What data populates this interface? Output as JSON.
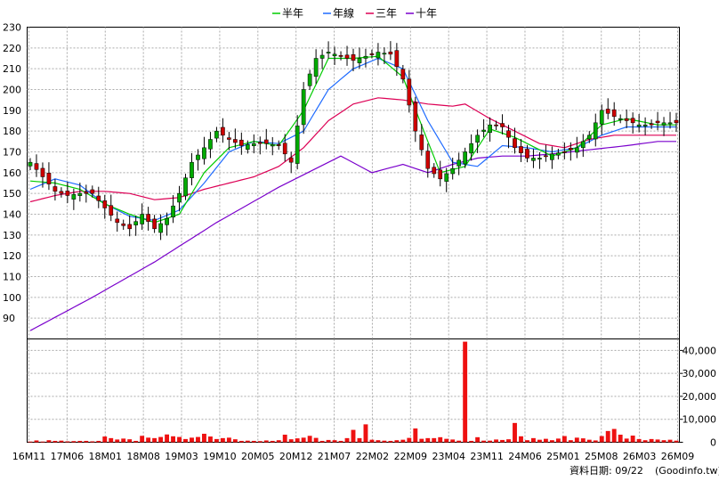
{
  "chart_data": [
    {
      "type": "candlestick",
      "legend": {
        "placement": "top-center",
        "entries": [
          {
            "name": "半年",
            "color": "#00cc00"
          },
          {
            "name": "年線",
            "color": "#1e6bff"
          },
          {
            "name": "三年",
            "color": "#dd0055"
          },
          {
            "name": "十年",
            "color": "#7a00cc"
          }
        ]
      },
      "ylim": [
        80,
        230
      ],
      "y_ticks": [
        90,
        100,
        110,
        120,
        130,
        140,
        150,
        160,
        170,
        180,
        190,
        200,
        210,
        220,
        230
      ],
      "grid": true,
      "up_color": "#00aa00",
      "down_color": "#cc0000",
      "x_ticks": [
        "16M11",
        "17M06",
        "18M01",
        "18M08",
        "19M03",
        "19M10",
        "20M05",
        "20M12",
        "21M07",
        "22M02",
        "22M09",
        "23M04",
        "23M11",
        "24M06",
        "25M01",
        "25M08",
        "26M03",
        "26M09"
      ],
      "price_anchors": [
        [
          0,
          165
        ],
        [
          2,
          158
        ],
        [
          4,
          151
        ],
        [
          6,
          149
        ],
        [
          8,
          150
        ],
        [
          10,
          150
        ],
        [
          12,
          143
        ],
        [
          14,
          136
        ],
        [
          16,
          133
        ],
        [
          18,
          140
        ],
        [
          20,
          133
        ],
        [
          22,
          138
        ],
        [
          24,
          150
        ],
        [
          26,
          165
        ],
        [
          28,
          172
        ],
        [
          30,
          180
        ],
        [
          32,
          176
        ],
        [
          34,
          173
        ],
        [
          36,
          174
        ],
        [
          38,
          174
        ],
        [
          40,
          173
        ],
        [
          42,
          165
        ],
        [
          44,
          200
        ],
        [
          46,
          215
        ],
        [
          48,
          218
        ],
        [
          50,
          216
        ],
        [
          52,
          214
        ],
        [
          54,
          216
        ],
        [
          56,
          218
        ],
        [
          58,
          217
        ],
        [
          60,
          205
        ],
        [
          62,
          180
        ],
        [
          64,
          162
        ],
        [
          66,
          157
        ],
        [
          68,
          162
        ],
        [
          70,
          170
        ],
        [
          72,
          178
        ],
        [
          74,
          183
        ],
        [
          76,
          182
        ],
        [
          78,
          172
        ],
        [
          80,
          167
        ],
        [
          82,
          167
        ],
        [
          84,
          169
        ],
        [
          86,
          170
        ],
        [
          88,
          172
        ],
        [
          90,
          178
        ],
        [
          92,
          190
        ],
        [
          94,
          187
        ],
        [
          96,
          185
        ],
        [
          98,
          183
        ],
        [
          100,
          183
        ],
        [
          101,
          184
        ]
      ],
      "ma_half_year": [
        [
          0,
          156
        ],
        [
          4,
          155
        ],
        [
          8,
          152
        ],
        [
          12,
          145
        ],
        [
          16,
          140
        ],
        [
          20,
          136
        ],
        [
          24,
          140
        ],
        [
          28,
          160
        ],
        [
          32,
          172
        ],
        [
          36,
          175
        ],
        [
          40,
          173
        ],
        [
          44,
          190
        ],
        [
          48,
          215
        ],
        [
          52,
          215
        ],
        [
          56,
          216
        ],
        [
          60,
          206
        ],
        [
          64,
          175
        ],
        [
          66,
          160
        ],
        [
          70,
          163
        ],
        [
          74,
          181
        ],
        [
          78,
          177
        ],
        [
          84,
          168
        ],
        [
          88,
          172
        ],
        [
          92,
          183
        ],
        [
          96,
          186
        ],
        [
          101,
          183
        ]
      ],
      "ma_year": [
        [
          0,
          152
        ],
        [
          4,
          157
        ],
        [
          8,
          154
        ],
        [
          12,
          145
        ],
        [
          16,
          139
        ],
        [
          20,
          137
        ],
        [
          24,
          142
        ],
        [
          28,
          155
        ],
        [
          32,
          170
        ],
        [
          36,
          175
        ],
        [
          40,
          174
        ],
        [
          44,
          180
        ],
        [
          48,
          200
        ],
        [
          52,
          210
        ],
        [
          56,
          215
        ],
        [
          60,
          210
        ],
        [
          64,
          185
        ],
        [
          68,
          165
        ],
        [
          72,
          163
        ],
        [
          76,
          173
        ],
        [
          80,
          172
        ],
        [
          84,
          170
        ],
        [
          88,
          172
        ],
        [
          92,
          178
        ],
        [
          96,
          182
        ],
        [
          101,
          182
        ]
      ],
      "ma_three_year": [
        [
          0,
          146
        ],
        [
          4,
          149
        ],
        [
          8,
          151
        ],
        [
          12,
          151
        ],
        [
          16,
          150
        ],
        [
          20,
          147
        ],
        [
          24,
          148
        ],
        [
          28,
          152
        ],
        [
          32,
          155
        ],
        [
          36,
          158
        ],
        [
          40,
          163
        ],
        [
          44,
          172
        ],
        [
          48,
          185
        ],
        [
          52,
          193
        ],
        [
          56,
          196
        ],
        [
          60,
          195
        ],
        [
          64,
          193
        ],
        [
          68,
          192
        ],
        [
          70,
          193
        ],
        [
          74,
          186
        ],
        [
          78,
          180
        ],
        [
          82,
          174
        ],
        [
          86,
          172
        ],
        [
          90,
          176
        ],
        [
          94,
          178
        ],
        [
          101,
          178
        ]
      ],
      "ma_ten_year": [
        [
          0,
          84
        ],
        [
          10,
          100
        ],
        [
          20,
          117
        ],
        [
          30,
          136
        ],
        [
          40,
          153
        ],
        [
          50,
          168
        ],
        [
          55,
          160
        ],
        [
          60,
          164
        ],
        [
          64,
          160
        ],
        [
          68,
          164
        ],
        [
          72,
          167
        ],
        [
          76,
          168
        ],
        [
          80,
          168
        ],
        [
          84,
          169
        ],
        [
          90,
          171
        ],
        [
          96,
          173
        ],
        [
          101,
          175
        ]
      ]
    },
    {
      "type": "bar",
      "ylim": [
        0,
        45000
      ],
      "y_ticks": [
        "0",
        "10,000",
        "20,000",
        "30,000",
        "40,000"
      ],
      "grid": true,
      "color": "#ee1111",
      "values": [
        300,
        800,
        300,
        900,
        600,
        700,
        400,
        500,
        600,
        600,
        400,
        600,
        2500,
        1800,
        1200,
        1600,
        1300,
        600,
        2800,
        2000,
        1800,
        2300,
        3400,
        2600,
        2300,
        1400,
        2000,
        2300,
        3700,
        2500,
        1400,
        1800,
        2000,
        1300,
        600,
        700,
        600,
        500,
        800,
        600,
        900,
        3300,
        1300,
        1700,
        2000,
        2800,
        1900,
        600,
        1000,
        900,
        600,
        1800,
        5400,
        1800,
        7800,
        1100,
        900,
        700,
        600,
        900,
        1100,
        1900,
        6000,
        1500,
        1800,
        1800,
        2200,
        1500,
        1200,
        700,
        43800,
        600,
        2200,
        700,
        700,
        1200,
        1000,
        1300,
        8400,
        2600,
        900,
        1800,
        1100,
        1500,
        900,
        1600,
        2700,
        900,
        2000,
        1700,
        1100,
        800,
        2700,
        4900,
        5800,
        3300,
        1600,
        2900,
        1400,
        900,
        1400,
        1200,
        900,
        1100,
        700
      ]
    }
  ],
  "footer": {
    "date_label": "資料日期: 09/22",
    "source": "(Goodinfo.tw)"
  }
}
